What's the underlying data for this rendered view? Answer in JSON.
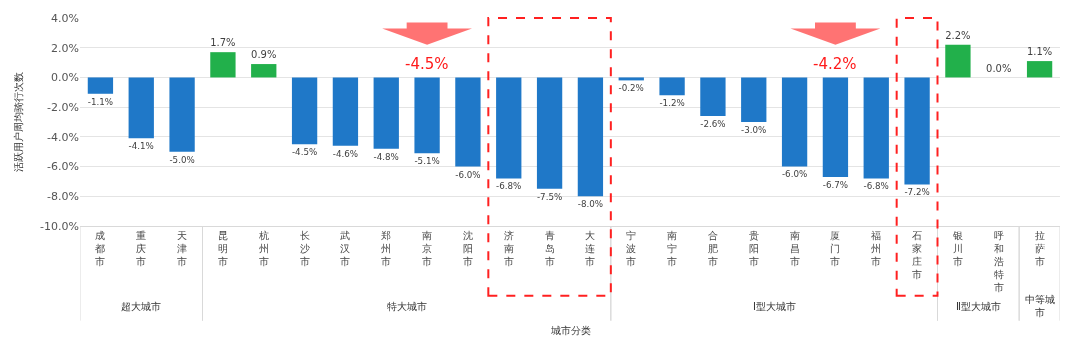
{
  "chart_data": {
    "type": "bar",
    "ylabel": "活跃用户周均骑行次数",
    "xlabel": "城市分类",
    "categories": [
      "成都市",
      "重庆市",
      "天津市",
      "昆明市",
      "杭州市",
      "长沙市",
      "武汉市",
      "郑州市",
      "南京市",
      "沈阳市",
      "济南市",
      "青岛市",
      "大连市",
      "宁波市",
      "南宁市",
      "合肥市",
      "贵阳市",
      "南昌市",
      "厦门市",
      "福州市",
      "石家庄市",
      "银川市",
      "呼和浩特市",
      "拉萨市"
    ],
    "values": [
      -1.1,
      -4.1,
      -5.0,
      1.7,
      0.9,
      -4.5,
      -4.6,
      -4.8,
      -5.1,
      -6.0,
      -6.8,
      -7.5,
      -8.0,
      -0.2,
      -1.2,
      -2.6,
      -3.0,
      -6.0,
      -6.7,
      -6.8,
      -7.2,
      2.2,
      0.0,
      1.1
    ],
    "value_labels": [
      "-1.1%",
      "-4.1%",
      "-5.0%",
      "1.7%",
      "0.9%",
      "-4.5%",
      "-4.6%",
      "-4.8%",
      "-5.1%",
      "-6.0%",
      "-6.8%",
      "-7.5%",
      "-8.0%",
      "-0.2%",
      "-1.2%",
      "-2.6%",
      "-3.0%",
      "-6.0%",
      "-6.7%",
      "-6.8%",
      "-7.2%",
      "2.2%",
      "0.0%",
      "1.1%"
    ],
    "colors": [
      "#1f78c8",
      "#1f78c8",
      "#1f78c8",
      "#22b04b",
      "#22b04b",
      "#1f78c8",
      "#1f78c8",
      "#1f78c8",
      "#1f78c8",
      "#1f78c8",
      "#1f78c8",
      "#1f78c8",
      "#1f78c8",
      "#1f78c8",
      "#1f78c8",
      "#1f78c8",
      "#1f78c8",
      "#1f78c8",
      "#1f78c8",
      "#1f78c8",
      "#1f78c8",
      "#22b04b",
      "#22b04b",
      "#22b04b"
    ],
    "ylim": [
      -10,
      4
    ],
    "yticks": [
      {
        "value": -10,
        "label": "-10.0%"
      },
      {
        "value": -8,
        "label": "-8.0%"
      },
      {
        "value": -6,
        "label": "-6.0%"
      },
      {
        "value": -4,
        "label": "-4.0%"
      },
      {
        "value": -2,
        "label": "-2.0%"
      },
      {
        "value": 0,
        "label": "0.0%"
      },
      {
        "value": 2,
        "label": "2.0%"
      },
      {
        "value": 4,
        "label": "4.0%"
      }
    ],
    "grid": "y",
    "annotations": [
      "-4.5%",
      "-4.2%",
      "超大城市",
      "特大城市",
      "Ⅰ型大城市",
      "Ⅱ型大城市",
      "中等城市"
    ]
  }
}
